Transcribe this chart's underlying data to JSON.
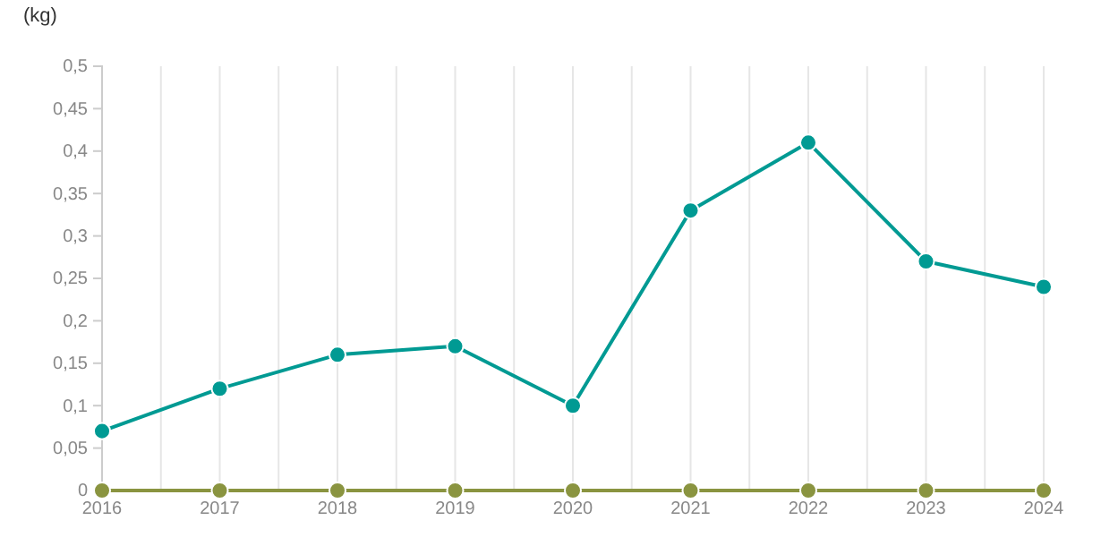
{
  "chart_data": {
    "type": "line",
    "ylabel": "(kg)",
    "x": [
      2016,
      2017,
      2018,
      2019,
      2020,
      2021,
      2022,
      2023,
      2024
    ],
    "xlim": [
      2016,
      2024
    ],
    "xticks": [
      2016,
      {
        "value": 2016.5,
        "label": null
      },
      2017,
      {
        "value": 2017.5,
        "label": null
      },
      2018,
      {
        "value": 2018.5,
        "label": null
      },
      2019,
      {
        "value": 2019.5,
        "label": null
      },
      2020,
      {
        "value": 2020.5,
        "label": null
      },
      2021,
      {
        "value": 2021.5,
        "label": null
      },
      2022,
      {
        "value": 2022.5,
        "label": null
      },
      2023,
      {
        "value": 2023.5,
        "label": null
      },
      2024
    ],
    "ylim": [
      0,
      0.5
    ],
    "yticks": [
      0,
      {
        "value": 0.05,
        "label": "0,05"
      },
      {
        "value": 0.1,
        "label": "0,1"
      },
      {
        "value": 0.15,
        "label": "0,15"
      },
      {
        "value": 0.2,
        "label": "0,2"
      },
      {
        "value": 0.25,
        "label": "0,25"
      },
      {
        "value": 0.3,
        "label": "0,3"
      },
      {
        "value": 0.35,
        "label": "0,35"
      },
      {
        "value": 0.4,
        "label": "0,4"
      },
      {
        "value": 0.45,
        "label": "0,45"
      },
      {
        "value": 0.5,
        "label": "0,5"
      }
    ],
    "grid": "x",
    "marker": "circle",
    "line_style": "solid",
    "series": [
      {
        "color": "#009a93",
        "values": [
          0.07,
          0.12,
          0.16,
          0.17,
          0.1,
          0.33,
          0.41,
          0.27,
          0.24
        ]
      },
      {
        "color": "#8a9440",
        "values": [
          0,
          0,
          0,
          0,
          0,
          0,
          0,
          0,
          0
        ]
      }
    ]
  }
}
